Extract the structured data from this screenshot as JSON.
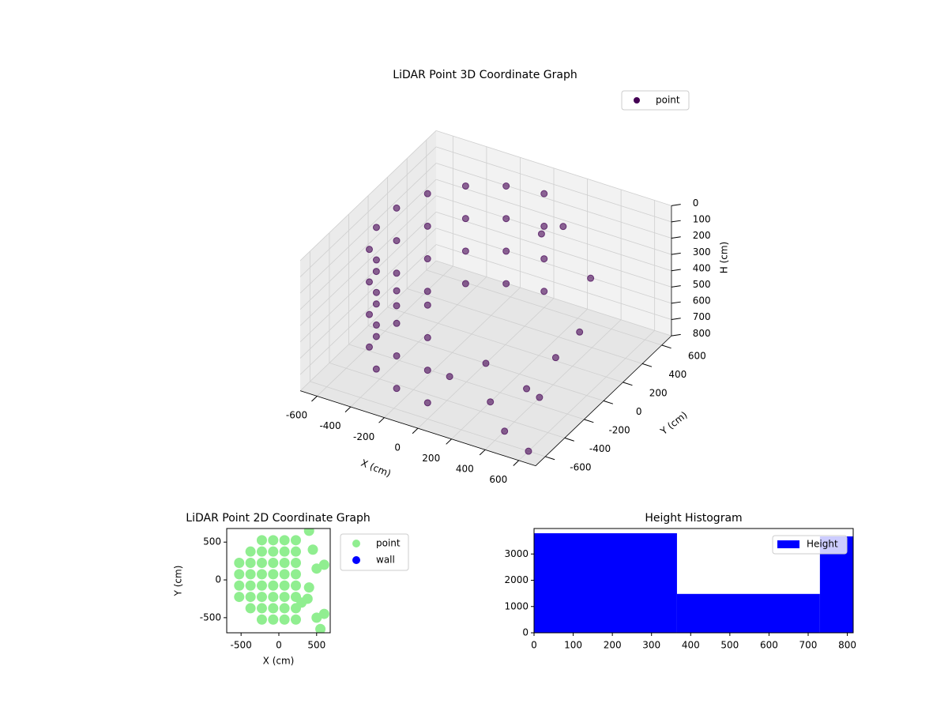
{
  "chart_data": [
    {
      "type": "scatter3d",
      "title": "LiDAR Point 3D Coordinate Graph",
      "xlabel": "X (cm)",
      "ylabel": "Y (cm)",
      "zlabel": "H (cm)",
      "xlim": [
        -700,
        700
      ],
      "ylim": [
        -700,
        700
      ],
      "zlim": [
        800,
        0
      ],
      "xticks": [
        -600,
        -400,
        -200,
        0,
        200,
        400,
        600
      ],
      "yticks": [
        -600,
        -400,
        -200,
        0,
        200,
        400,
        600
      ],
      "zticks": [
        0,
        100,
        200,
        300,
        400,
        500,
        600,
        700,
        800
      ],
      "legend": "upper right",
      "series": [
        {
          "name": "point",
          "color": "#440154",
          "x": [
            0,
            -205,
            -386,
            -520,
            -591,
            -591,
            -520,
            -386,
            -205,
            0,
            0,
            -205,
            -386,
            -520,
            -591,
            -591,
            -520,
            -386,
            -205,
            0,
            0,
            -205,
            -386,
            -520,
            -591,
            -591,
            -520,
            -386,
            -205,
            0,
            0,
            -205,
            -386,
            -520,
            -591,
            -591,
            -520,
            -386,
            -205,
            0,
            200,
            400,
            300,
            500,
            450,
            100,
            200,
            -100,
            0,
            300,
            600,
            550
          ],
          "y": [
            600,
            564,
            460,
            300,
            104,
            -104,
            -300,
            -460,
            -564,
            -600,
            600,
            564,
            460,
            300,
            104,
            -104,
            -300,
            -460,
            -564,
            -600,
            600,
            564,
            460,
            300,
            104,
            -104,
            -300,
            -460,
            -564,
            -600,
            600,
            564,
            460,
            300,
            104,
            -104,
            -300,
            -460,
            -564,
            -600,
            -300,
            -500,
            200,
            100,
            300,
            400,
            450,
            -200,
            0,
            -100,
            -600,
            -400
          ],
          "z": [
            100,
            100,
            100,
            100,
            100,
            100,
            100,
            100,
            100,
            100,
            300,
            300,
            300,
            300,
            300,
            300,
            300,
            300,
            300,
            300,
            500,
            500,
            500,
            500,
            500,
            500,
            500,
            500,
            500,
            500,
            700,
            700,
            700,
            700,
            700,
            700,
            700,
            700,
            700,
            700,
            800,
            800,
            780,
            500,
            300,
            200,
            150,
            800,
            800,
            800,
            800,
            600
          ]
        }
      ]
    },
    {
      "type": "scatter",
      "title": "LiDAR Point 2D Coordinate Graph",
      "xlabel": "X (cm)",
      "ylabel": "Y (cm)",
      "xlim": [
        -690,
        680
      ],
      "ylim": [
        -700,
        680
      ],
      "xticks": [
        -500,
        0,
        500
      ],
      "yticks": [
        -500,
        0,
        500
      ],
      "legend": "outside upper right",
      "series": [
        {
          "name": "point",
          "color": "#90ee90",
          "x": [
            -525,
            -525,
            -525,
            -525,
            -375,
            -375,
            -375,
            -375,
            -375,
            -375,
            -225,
            -225,
            -225,
            -225,
            -225,
            -225,
            -225,
            -225,
            -75,
            -75,
            -75,
            -75,
            -75,
            -75,
            -75,
            -75,
            75,
            75,
            75,
            75,
            75,
            75,
            75,
            75,
            225,
            225,
            225,
            225,
            225,
            225,
            225,
            225,
            400,
            450,
            500,
            400,
            300,
            500,
            550,
            380,
            600,
            600
          ],
          "y": [
            -225,
            -75,
            75,
            225,
            -375,
            -225,
            -75,
            75,
            225,
            375,
            -525,
            -375,
            -225,
            -75,
            75,
            225,
            375,
            525,
            -525,
            -375,
            -225,
            -75,
            75,
            225,
            375,
            525,
            -525,
            -375,
            -225,
            -75,
            75,
            225,
            375,
            525,
            -525,
            -375,
            -225,
            -75,
            75,
            225,
            375,
            525,
            650,
            400,
            150,
            -100,
            -300,
            -500,
            -650,
            -250,
            200,
            -450
          ]
        },
        {
          "name": "wall",
          "color": "#0000ff",
          "x": [],
          "y": []
        }
      ]
    },
    {
      "type": "histogram",
      "title": "Height Histogram",
      "bins": [
        0,
        365,
        730,
        815
      ],
      "xlim": [
        0,
        815
      ],
      "ylim": [
        0,
        3970
      ],
      "xticks": [
        0,
        100,
        200,
        300,
        400,
        500,
        600,
        700,
        800
      ],
      "yticks": [
        0,
        1000,
        2000,
        3000
      ],
      "legend": "upper right",
      "series": [
        {
          "name": "Height",
          "color": "#0000ff",
          "values": [
            3790,
            1480,
            3670
          ]
        }
      ]
    }
  ]
}
